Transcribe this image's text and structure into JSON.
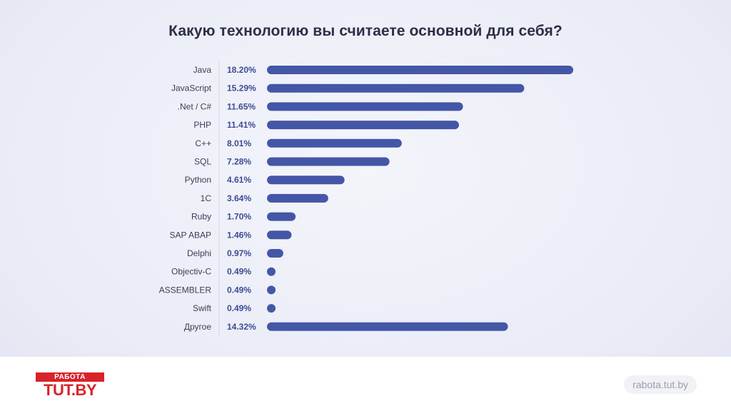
{
  "chart_data": {
    "type": "bar",
    "orientation": "horizontal",
    "title": "Какую технологию вы считаете основной для себя?",
    "categories": [
      "Java",
      "JavaScript",
      ".Net / C#",
      "PHP",
      "C++",
      "SQL",
      "Python",
      "1C",
      "Ruby",
      "SAP ABAP",
      "Delphi",
      "Objectiv-C",
      "ASSEMBLER",
      "Swift",
      "Другое"
    ],
    "values": [
      18.2,
      15.29,
      11.65,
      11.41,
      8.01,
      7.28,
      4.61,
      3.64,
      1.7,
      1.46,
      0.97,
      0.49,
      0.49,
      0.49,
      14.32
    ],
    "value_labels": [
      "18.20%",
      "15.29%",
      "11.65%",
      "11.41%",
      "8.01%",
      "7.28%",
      "4.61%",
      "3.64%",
      "1.70%",
      "1.46%",
      "0.97%",
      "0.49%",
      "0.49%",
      "0.49%",
      "14.32%"
    ],
    "xlim": [
      0,
      18.2
    ],
    "bar_color": "#4456a6",
    "grid": false,
    "legend": "none"
  },
  "brand": {
    "logo_top": "РАБОТА",
    "logo_bottom": "TUT.BY",
    "site": "rabota.tut.by",
    "brand_color": "#d8232a"
  }
}
